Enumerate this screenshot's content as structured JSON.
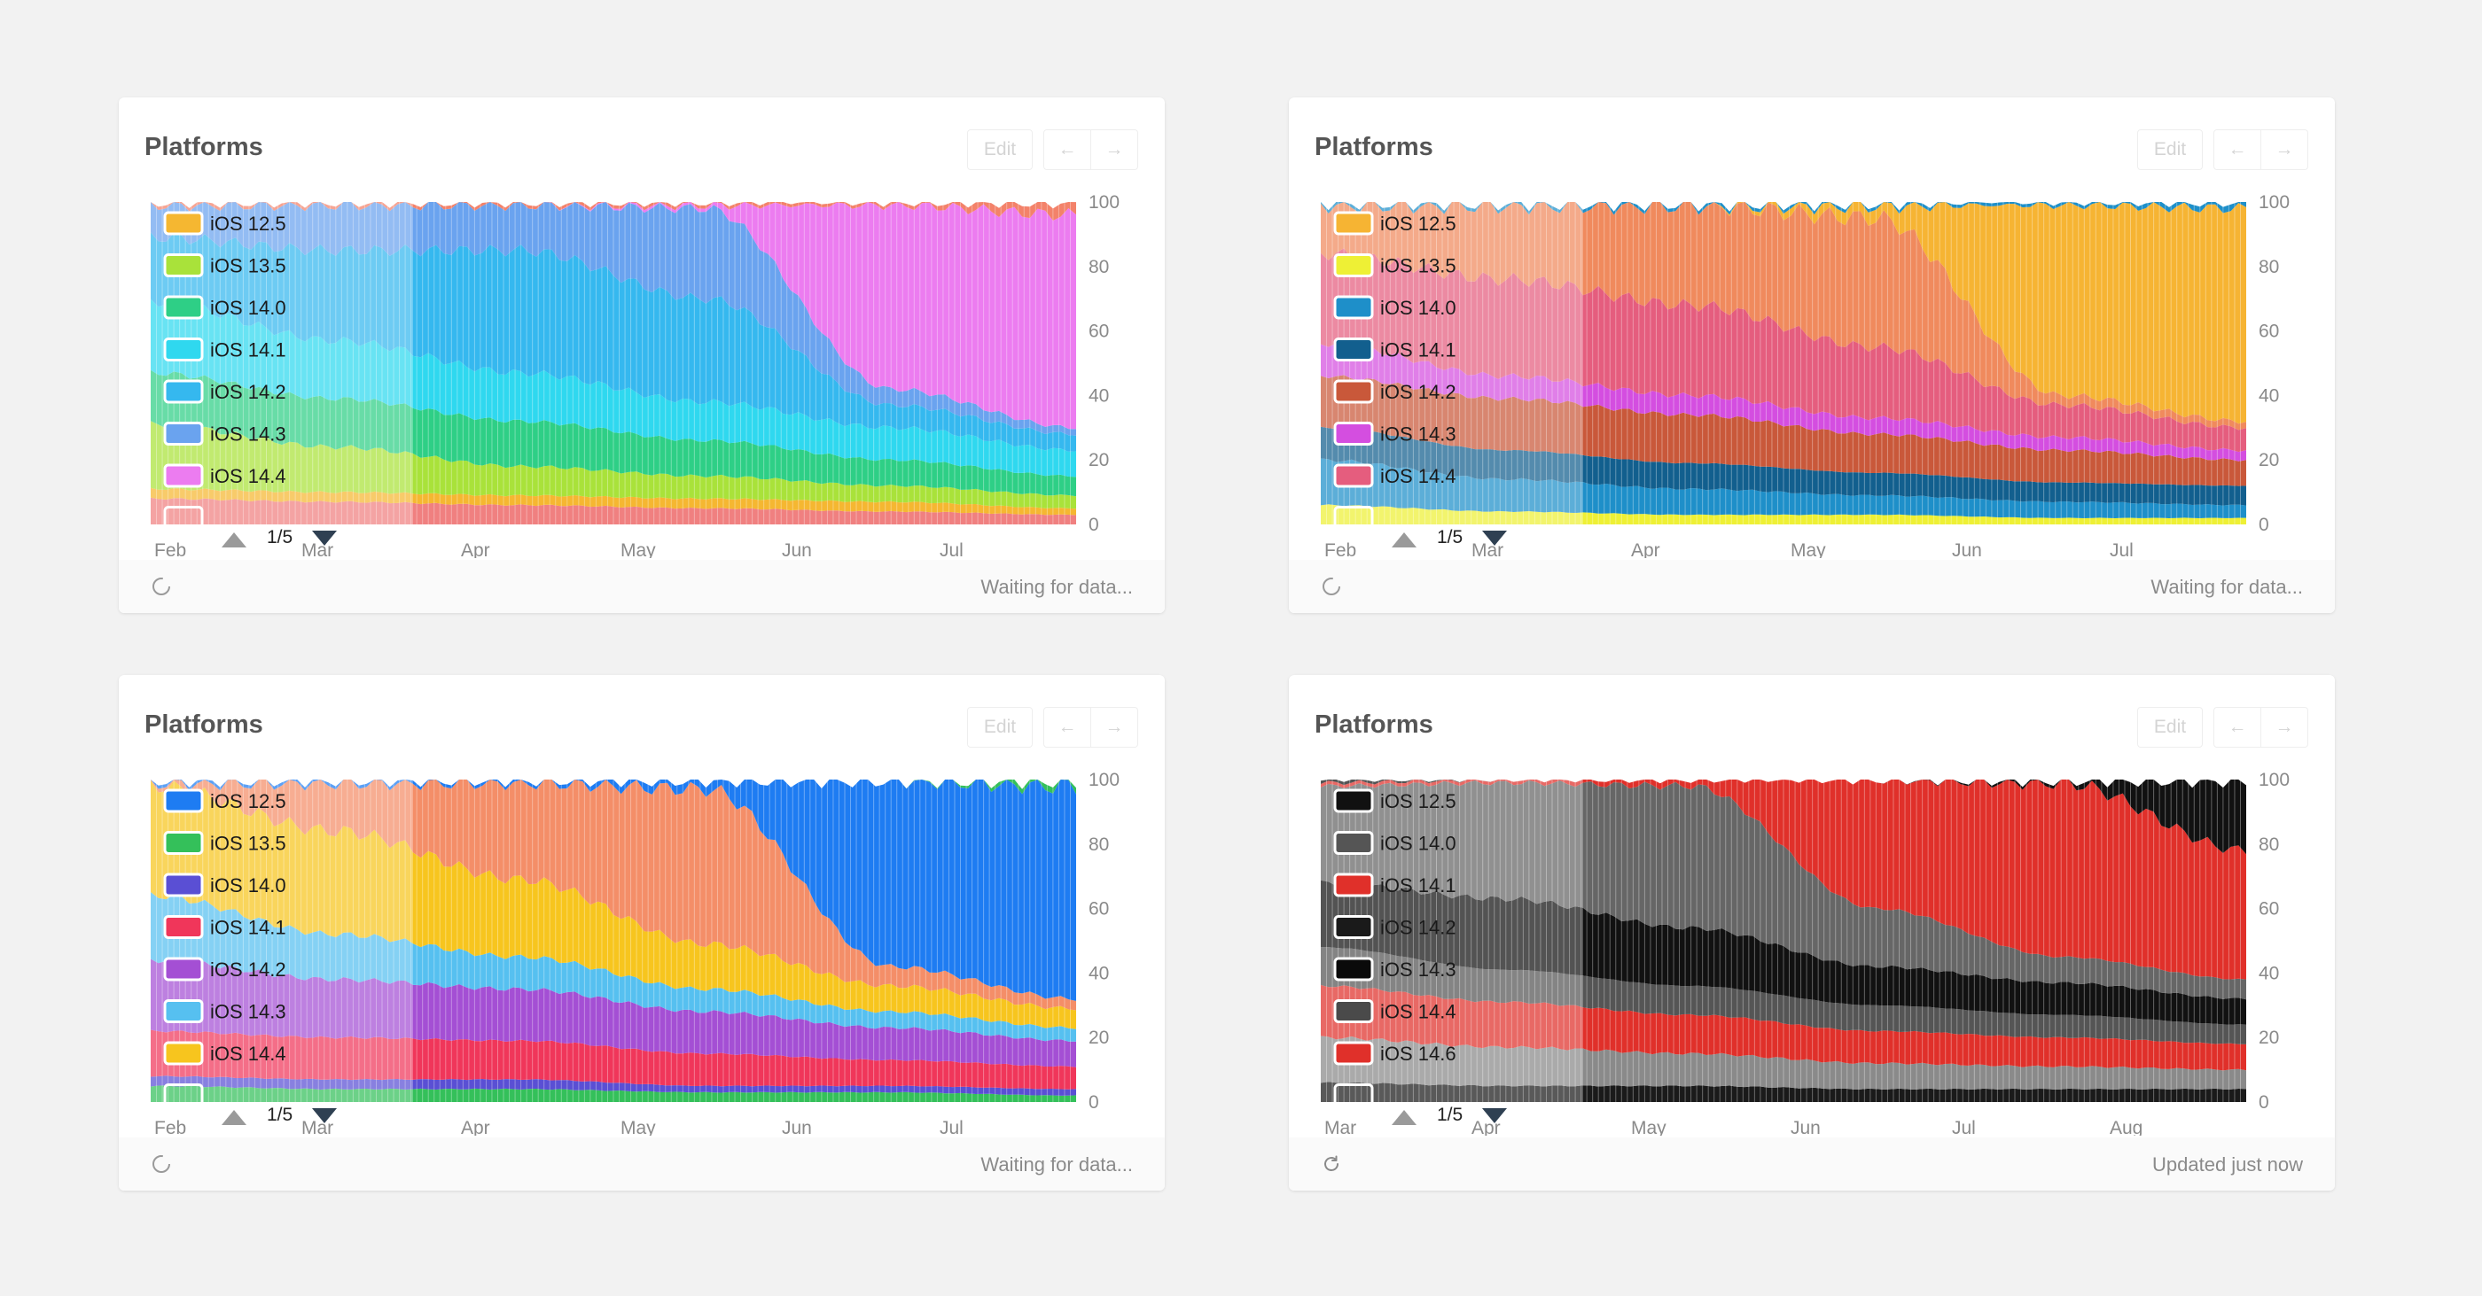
{
  "cards": [
    {
      "title": "Platforms",
      "edit_label": "Edit",
      "prev_icon": "arrow-left-icon",
      "next_icon": "arrow-right-icon",
      "prev_glyph": "←",
      "next_glyph": "→",
      "page_indicator": "1/5",
      "status_text": "Waiting for data...",
      "status_icon": "loading-spinner-icon",
      "legend": [
        {
          "label": "iOS 12.5",
          "color": "#f5b731"
        },
        {
          "label": "iOS 13.5",
          "color": "#a9e23a"
        },
        {
          "label": "iOS 14.0",
          "color": "#2ecf86"
        },
        {
          "label": "iOS 14.1",
          "color": "#2fd8ef"
        },
        {
          "label": "iOS 14.2",
          "color": "#35b8ef"
        },
        {
          "label": "iOS 14.3",
          "color": "#6aa3ef"
        },
        {
          "label": "iOS 14.4",
          "color": "#ec7cf0"
        }
      ],
      "chart_data": {
        "type": "area",
        "stacked": true,
        "x": [
          "Feb",
          "Mar",
          "Apr",
          "May",
          "Jun",
          "Jul"
        ],
        "y_ticks": [
          "100",
          "80",
          "60",
          "40",
          "20",
          "0"
        ],
        "ylim": [
          0,
          100
        ],
        "series": [
          {
            "color": "#f08080",
            "values": [
              8,
              7,
              6,
              5,
              4,
              3
            ]
          },
          {
            "color": "#f5b731",
            "values": [
              3,
              3,
              3,
              3,
              3,
              2
            ]
          },
          {
            "color": "#a9e23a",
            "values": [
              20,
              14,
              9,
              7,
              5,
              4
            ]
          },
          {
            "color": "#2ecf86",
            "values": [
              16,
              15,
              14,
              11,
              8,
              6
            ]
          },
          {
            "color": "#2fd8ef",
            "values": [
              22,
              18,
              15,
              12,
              10,
              8
            ]
          },
          {
            "color": "#35b8ef",
            "values": [
              20,
              28,
              38,
              32,
              7,
              5
            ]
          },
          {
            "color": "#6aa3ef",
            "values": [
              10,
              14,
              14,
              28,
              5,
              2
            ]
          },
          {
            "color": "#ec7cf0",
            "values": [
              0,
              0,
              0,
              1,
              57,
              66
            ]
          },
          {
            "color": "#f3826a",
            "values": [
              1,
              1,
              1,
              1,
              1,
              4
            ]
          }
        ]
      }
    },
    {
      "title": "Platforms",
      "edit_label": "Edit",
      "prev_icon": "arrow-left-icon",
      "next_icon": "arrow-right-icon",
      "prev_glyph": "←",
      "next_glyph": "→",
      "page_indicator": "1/5",
      "status_text": "Waiting for data...",
      "status_icon": "loading-spinner-icon",
      "legend": [
        {
          "label": "iOS 12.5",
          "color": "#f6b433"
        },
        {
          "label": "iOS 13.5",
          "color": "#eef035"
        },
        {
          "label": "iOS 14.0",
          "color": "#1e8fc9"
        },
        {
          "label": "iOS 14.1",
          "color": "#125f8e"
        },
        {
          "label": "iOS 14.2",
          "color": "#c9583a"
        },
        {
          "label": "iOS 14.3",
          "color": "#d44ee0"
        },
        {
          "label": "iOS 14.4",
          "color": "#e55d7e"
        }
      ],
      "chart_data": {
        "type": "area",
        "stacked": true,
        "x": [
          "Feb",
          "Mar",
          "Apr",
          "May",
          "Jun",
          "Jul"
        ],
        "y_ticks": [
          "100",
          "80",
          "60",
          "40",
          "20",
          "0"
        ],
        "ylim": [
          0,
          100
        ],
        "series": [
          {
            "color": "#eef035",
            "values": [
              6,
              4,
              3,
              3,
              2,
              2
            ]
          },
          {
            "color": "#1e8fc9",
            "values": [
              14,
              10,
              8,
              6,
              5,
              4
            ]
          },
          {
            "color": "#125f8e",
            "values": [
              10,
              9,
              8,
              7,
              6,
              6
            ]
          },
          {
            "color": "#c9583a",
            "values": [
              16,
              16,
              15,
              12,
              10,
              8
            ]
          },
          {
            "color": "#d44ee0",
            "values": [
              10,
              7,
              6,
              5,
              4,
              3
            ]
          },
          {
            "color": "#e55d7e",
            "values": [
              28,
              30,
              28,
              22,
              10,
              7
            ]
          },
          {
            "color": "#f08a5d",
            "values": [
              15,
              23,
              31,
              40,
              3,
              2
            ]
          },
          {
            "color": "#f6b433",
            "values": [
              0,
              0,
              0,
              4,
              59,
              66
            ]
          },
          {
            "color": "#1e8fc9",
            "values": [
              1,
              1,
              1,
              1,
              1,
              2
            ]
          }
        ]
      }
    },
    {
      "title": "Platforms",
      "edit_label": "Edit",
      "prev_icon": "arrow-left-icon",
      "next_icon": "arrow-right-icon",
      "prev_glyph": "←",
      "next_glyph": "→",
      "page_indicator": "1/5",
      "status_text": "Waiting for data...",
      "status_icon": "loading-spinner-icon",
      "legend": [
        {
          "label": "iOS 12.5",
          "color": "#1e7cf2"
        },
        {
          "label": "iOS 13.5",
          "color": "#34c05a"
        },
        {
          "label": "iOS 14.0",
          "color": "#5a4fd4"
        },
        {
          "label": "iOS 14.1",
          "color": "#f0365a"
        },
        {
          "label": "iOS 14.2",
          "color": "#a44fd4"
        },
        {
          "label": "iOS 14.3",
          "color": "#56c0f0"
        },
        {
          "label": "iOS 14.4",
          "color": "#f7c51e"
        }
      ],
      "chart_data": {
        "type": "area",
        "stacked": true,
        "x": [
          "Feb",
          "Mar",
          "Apr",
          "May",
          "Jun",
          "Jul"
        ],
        "y_ticks": [
          "100",
          "80",
          "60",
          "40",
          "20",
          "0"
        ],
        "ylim": [
          0,
          100
        ],
        "series": [
          {
            "color": "#34c05a",
            "values": [
              5,
              4,
              4,
              3,
              3,
              2
            ]
          },
          {
            "color": "#5a4fd4",
            "values": [
              3,
              3,
              3,
              2,
              2,
              2
            ]
          },
          {
            "color": "#f0365a",
            "values": [
              14,
              13,
              12,
              10,
              8,
              7
            ]
          },
          {
            "color": "#a44fd4",
            "values": [
              22,
              18,
              16,
              13,
              10,
              8
            ]
          },
          {
            "color": "#56c0f0",
            "values": [
              20,
              14,
              10,
              7,
              5,
              4
            ]
          },
          {
            "color": "#f7c51e",
            "values": [
              34,
              32,
              24,
              14,
              8,
              6
            ]
          },
          {
            "color": "#f48e68",
            "values": [
              1,
              15,
              30,
              48,
              6,
              3
            ]
          },
          {
            "color": "#1e7cf2",
            "values": [
              1,
              1,
              1,
              3,
              58,
              66
            ]
          },
          {
            "color": "#34c05a",
            "values": [
              0,
              0,
              0,
              0,
              0,
              2
            ]
          }
        ]
      }
    },
    {
      "title": "Platforms",
      "edit_label": "Edit",
      "prev_icon": "arrow-left-icon",
      "next_icon": "arrow-right-icon",
      "prev_glyph": "←",
      "next_glyph": "→",
      "page_indicator": "1/5",
      "status_text": "Updated just now",
      "status_icon": "refresh-icon",
      "legend": [
        {
          "label": "iOS 12.5",
          "color": "#111111"
        },
        {
          "label": "iOS 14.0",
          "color": "#555555"
        },
        {
          "label": "iOS 14.1",
          "color": "#e0302a"
        },
        {
          "label": "iOS 14.2",
          "color": "#1a1a1a"
        },
        {
          "label": "iOS 14.3",
          "color": "#0a0a0a"
        },
        {
          "label": "iOS 14.4",
          "color": "#4a4a4a"
        },
        {
          "label": "iOS 14.6",
          "color": "#e0302a"
        }
      ],
      "chart_data": {
        "type": "area",
        "stacked": true,
        "x": [
          "Mar",
          "Apr",
          "May",
          "Jun",
          "Jul",
          "Aug"
        ],
        "y_ticks": [
          "100",
          "80",
          "60",
          "40",
          "20",
          "0"
        ],
        "ylim": [
          0,
          100
        ],
        "series": [
          {
            "color": "#1a1a1a",
            "values": [
              6,
              5,
              5,
              4,
              4,
              4
            ]
          },
          {
            "color": "#8a8a8a",
            "values": [
              14,
              12,
              10,
              8,
              7,
              6
            ]
          },
          {
            "color": "#e0302a",
            "values": [
              16,
              14,
              12,
              10,
              9,
              8
            ]
          },
          {
            "color": "#555555",
            "values": [
              12,
              10,
              9,
              8,
              7,
              6
            ]
          },
          {
            "color": "#111111",
            "values": [
              20,
              22,
              18,
              12,
              10,
              8
            ]
          },
          {
            "color": "#666666",
            "values": [
              30,
              36,
              44,
              18,
              8,
              6
            ]
          },
          {
            "color": "#e0302a",
            "values": [
              1,
              1,
              2,
              40,
              54,
              40
            ]
          },
          {
            "color": "#111111",
            "values": [
              1,
              0,
              0,
              0,
              1,
              22
            ]
          }
        ]
      }
    }
  ]
}
